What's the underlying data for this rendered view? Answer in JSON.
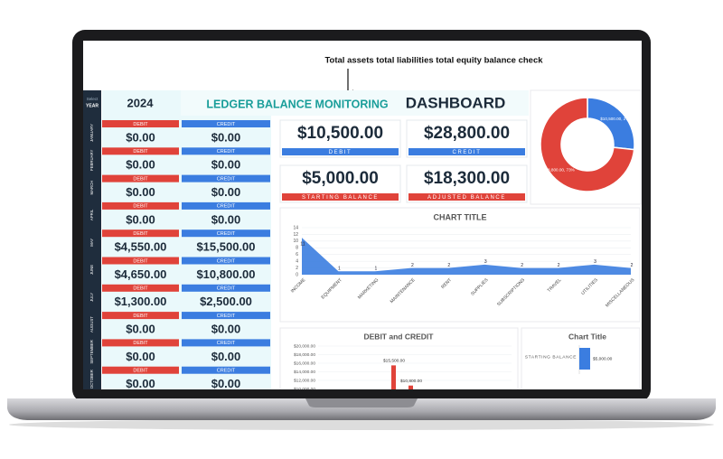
{
  "annotation": "Total assets total liabilities total equity balance check",
  "sidebar_label": [
    "Select",
    "YEAR"
  ],
  "year": "2024",
  "title": [
    "LEDGER BALANCE MONITORING",
    "DASHBOARD"
  ],
  "ledger": {
    "debit_header": "DEBIT",
    "credit_header": "CREDIT",
    "rows": [
      {
        "month": "JANUARY",
        "debit": "$0.00",
        "credit": "$0.00"
      },
      {
        "month": "FEBRUARY",
        "debit": "$0.00",
        "credit": "$0.00"
      },
      {
        "month": "MARCH",
        "debit": "$0.00",
        "credit": "$0.00"
      },
      {
        "month": "APRIL",
        "debit": "$0.00",
        "credit": "$0.00"
      },
      {
        "month": "MAY",
        "debit": "$4,550.00",
        "credit": "$15,500.00"
      },
      {
        "month": "JUNE",
        "debit": "$4,650.00",
        "credit": "$10,800.00"
      },
      {
        "month": "JULY",
        "debit": "$1,300.00",
        "credit": "$2,500.00"
      },
      {
        "month": "AUGUST",
        "debit": "$0.00",
        "credit": "$0.00"
      },
      {
        "month": "SEPTEMBER",
        "debit": "$0.00",
        "credit": "$0.00"
      },
      {
        "month": "OCTOBER",
        "debit": "$0.00",
        "credit": "$0.00"
      }
    ]
  },
  "kpis": [
    {
      "value": "$10,500.00",
      "label": "DEBIT",
      "color": "#3b7de0"
    },
    {
      "value": "$28,800.00",
      "label": "CREDIT",
      "color": "#3b7de0"
    },
    {
      "value": "$5,000.00",
      "label": "STARTING BALANCE",
      "color": "#e0433a"
    },
    {
      "value": "$18,300.00",
      "label": "ADJUSTED BALANCE",
      "color": "#e0433a"
    }
  ],
  "chart_data": [
    {
      "type": "donut",
      "values": [
        10500,
        28800
      ],
      "value_labels": [
        "$10,500.00, 27%",
        "$28,800.00, 73%"
      ],
      "colors": [
        "#3b7de0",
        "#e0433a"
      ]
    },
    {
      "type": "area",
      "title": "CHART TITLE",
      "categories": [
        "INCOME",
        "EQUIPMENT",
        "MARKETING",
        "MAINTENANCE",
        "RENT",
        "SUPPLIES",
        "SUBSCRIPTIONS",
        "TRAVEL",
        "UTILITIES",
        "MISCELLANEOUS"
      ],
      "values": [
        11,
        1,
        1,
        2,
        2,
        3,
        2,
        2,
        3,
        2
      ],
      "color": "#3b7de0",
      "ylim": [
        0,
        14
      ],
      "yticks": [
        0,
        2,
        4,
        6,
        8,
        10,
        12,
        14
      ],
      "grid": true
    },
    {
      "type": "bar",
      "title": "DEBIT and CREDIT",
      "values": [
        15500,
        10800
      ],
      "value_labels": [
        "$15,500.00",
        "$10,800.00"
      ],
      "color": "#e0433a",
      "ylim": [
        0,
        20000
      ],
      "yticks": [
        {
          "value": 10000,
          "label": "$10,000.00"
        },
        {
          "value": 12000,
          "label": "$12,000.00"
        },
        {
          "value": 14000,
          "label": "$14,000.00"
        },
        {
          "value": 16000,
          "label": "$16,000.00"
        },
        {
          "value": 18000,
          "label": "$18,000.00"
        },
        {
          "value": 20000,
          "label": "$20,000.00"
        }
      ],
      "grid": true
    },
    {
      "type": "barh",
      "title": "Chart Title",
      "categories": [
        "STARTING BALANCE"
      ],
      "values": [
        5000
      ],
      "value_labels": [
        "$5,000.00"
      ],
      "color": "#3b7de0"
    }
  ]
}
